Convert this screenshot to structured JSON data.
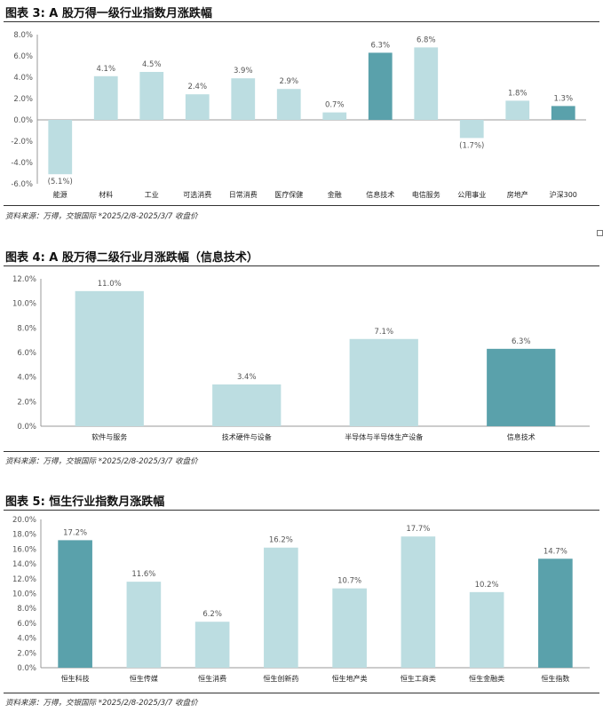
{
  "charts_meta": [
    {
      "title": "图表 3: A 股万得一级行业指数月涨跌幅",
      "source": "资料来源：万得，交银国际    *2025/2/8-2025/3/7 收盘价"
    },
    {
      "title": "图表 4: A 股万得二级行业月涨跌幅（信息技术）",
      "source": "资料来源：万得，交银国际    *2025/2/8-2025/3/7 收盘价"
    },
    {
      "title": "图表 5: 恒生行业指数月涨跌幅",
      "source": "资料来源：万得，交银国际    *2025/2/8-2025/3/7 收盘价"
    }
  ],
  "colors": {
    "light": "#bcdde1",
    "dark": "#5aa1ab",
    "axis": "#999999"
  },
  "chart_data": [
    {
      "type": "bar",
      "title": "图表 3: A 股万得一级行业指数月涨跌幅",
      "categories": [
        "能源",
        "材料",
        "工业",
        "可选消费",
        "日常消费",
        "医疗保健",
        "金融",
        "信息技术",
        "电信服务",
        "公用事业",
        "房地产",
        "沪深300"
      ],
      "values": [
        -5.1,
        4.1,
        4.5,
        2.4,
        3.9,
        2.9,
        0.7,
        6.3,
        6.8,
        -1.7,
        1.8,
        1.3
      ],
      "value_labels": [
        "(5.1%)",
        "4.1%",
        "4.5%",
        "2.4%",
        "3.9%",
        "2.9%",
        "0.7%",
        "6.3%",
        "6.8%",
        "(1.7%)",
        "1.8%",
        "1.3%"
      ],
      "highlight": [
        false,
        false,
        false,
        false,
        false,
        false,
        false,
        true,
        false,
        false,
        false,
        true
      ],
      "yticks": [
        "8.0%",
        "6.0%",
        "4.0%",
        "2.0%",
        "0.0%",
        "-2.0%",
        "-4.0%",
        "-6.0%"
      ],
      "ylim": [
        -6,
        8
      ]
    },
    {
      "type": "bar",
      "title": "图表 4: A 股万得二级行业月涨跌幅（信息技术）",
      "categories": [
        "软件与服务",
        "技术硬件与设备",
        "半导体与半导体生产设备",
        "信息技术"
      ],
      "values": [
        11.0,
        3.4,
        7.1,
        6.3
      ],
      "value_labels": [
        "11.0%",
        "3.4%",
        "7.1%",
        "6.3%"
      ],
      "highlight": [
        false,
        false,
        false,
        true
      ],
      "yticks": [
        "12.0%",
        "10.0%",
        "8.0%",
        "6.0%",
        "4.0%",
        "2.0%",
        "0.0%"
      ],
      "ylim": [
        0,
        12
      ]
    },
    {
      "type": "bar",
      "title": "图表 5: 恒生行业指数月涨跌幅",
      "categories": [
        "恒生科技",
        "恒生传媒",
        "恒生消费",
        "恒生创新药",
        "恒生地产类",
        "恒生工商类",
        "恒生金融类",
        "恒生指数"
      ],
      "values": [
        17.2,
        11.6,
        6.2,
        16.2,
        10.7,
        17.7,
        10.2,
        14.7
      ],
      "value_labels": [
        "17.2%",
        "11.6%",
        "6.2%",
        "16.2%",
        "10.7%",
        "17.7%",
        "10.2%",
        "14.7%"
      ],
      "highlight": [
        true,
        false,
        false,
        false,
        false,
        false,
        false,
        true
      ],
      "yticks": [
        "20.0%",
        "18.0%",
        "16.0%",
        "14.0%",
        "12.0%",
        "10.0%",
        "8.0%",
        "6.0%",
        "4.0%",
        "2.0%",
        "0.0%"
      ],
      "ylim": [
        0,
        20
      ]
    }
  ]
}
